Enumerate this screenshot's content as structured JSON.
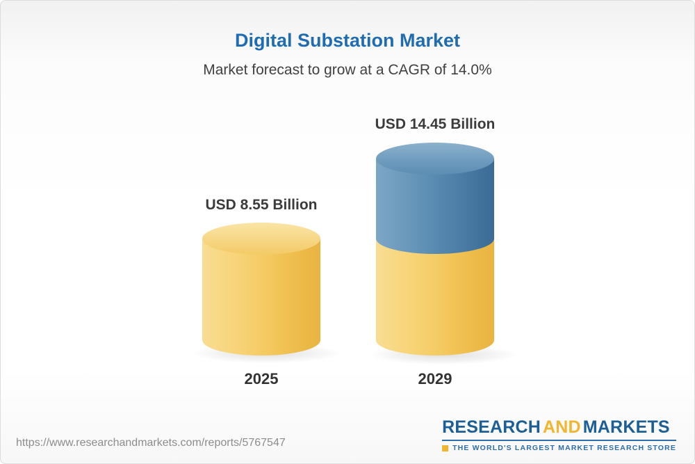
{
  "header": {
    "title": "Digital Substation Market",
    "subtitle": "Market forecast to grow at a CAGR of 14.0%"
  },
  "chart_data": {
    "type": "bar",
    "subtype": "3d-cylinder",
    "categories": [
      "2025",
      "2029"
    ],
    "values": [
      8.55,
      14.45
    ],
    "data_labels": [
      "USD 8.55 Billion",
      "USD 14.45 Billion"
    ],
    "unit": "USD Billion",
    "title": "Digital Substation Market",
    "subtitle": "Market forecast to grow at a CAGR of 14.0%",
    "cagr_percent": 14.0,
    "stacked_2029": {
      "base_value_yellow": 8.55,
      "growth_value_blue": 5.9
    },
    "axes": "none",
    "grid": false,
    "legend": "none",
    "colors": {
      "bar_2025": "#f3c75c",
      "bar_2029_base": "#f3c75c",
      "bar_2029_growth": "#4f81a9",
      "title_text": "#1f6cb0",
      "label_text": "#3b3b3b"
    }
  },
  "footer": {
    "url": "https://www.researchandmarkets.com/reports/5767547",
    "logo": {
      "word1": "RESEARCH",
      "word2": "AND",
      "word3": "MARKETS",
      "tagline": "THE WORLD'S LARGEST MARKET RESEARCH STORE",
      "color_blue": "#1d5e95",
      "color_gold": "#f0b62f"
    }
  }
}
